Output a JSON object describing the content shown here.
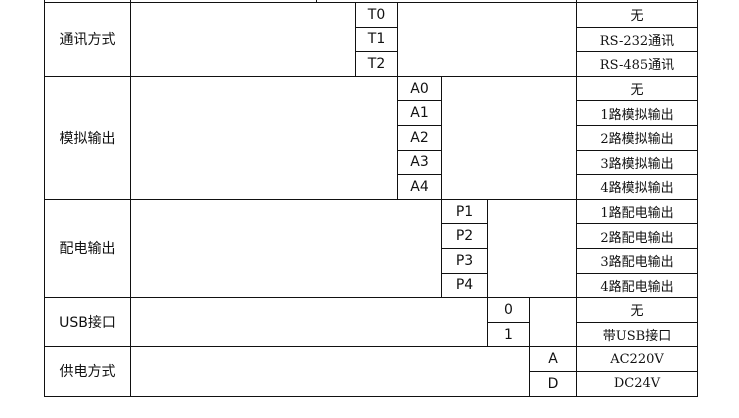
{
  "groups": [
    {
      "label": "通讯方式",
      "items": [
        {
          "code": "T0",
          "desc": "无"
        },
        {
          "code": "T1",
          "desc": "RS-232通讯"
        },
        {
          "code": "T2",
          "desc": "RS-485通讯"
        }
      ]
    },
    {
      "label": "模拟输出",
      "items": [
        {
          "code": "A0",
          "desc": "无"
        },
        {
          "code": "A1",
          "desc": "1路模拟输出"
        },
        {
          "code": "A2",
          "desc": "2路模拟输出"
        },
        {
          "code": "A3",
          "desc": "3路模拟输出"
        },
        {
          "code": "A4",
          "desc": "4路模拟输出"
        }
      ]
    },
    {
      "label": "配电输出",
      "items": [
        {
          "code": "P1",
          "desc": "1路配电输出"
        },
        {
          "code": "P2",
          "desc": "2路配电输出"
        },
        {
          "code": "P3",
          "desc": "3路配电输出"
        },
        {
          "code": "P4",
          "desc": "4路配电输出"
        }
      ]
    },
    {
      "label": "USB接口",
      "items": [
        {
          "code": "0",
          "desc": "无"
        },
        {
          "code": "1",
          "desc": "带USB接口"
        }
      ]
    },
    {
      "label": "供电方式",
      "items": [
        {
          "code": "A",
          "desc": "AC220V"
        },
        {
          "code": "D",
          "desc": "DC24V"
        }
      ]
    }
  ]
}
